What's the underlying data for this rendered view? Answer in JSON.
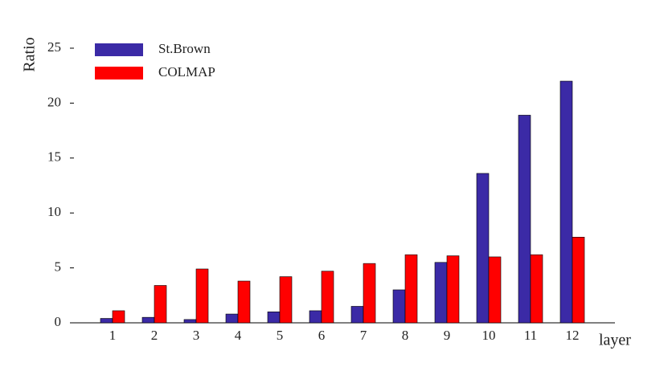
{
  "chart_data": {
    "type": "bar",
    "x_label": "layer",
    "y_label": "Ratio",
    "categories": [
      "1",
      "2",
      "3",
      "4",
      "5",
      "6",
      "7",
      "8",
      "9",
      "10",
      "11",
      "12"
    ],
    "series": [
      {
        "name": "St.Brown",
        "color": "#3b2aa6",
        "values": [
          0.4,
          0.5,
          0.3,
          0.8,
          1.0,
          1.1,
          1.5,
          3.0,
          5.5,
          13.6,
          18.9,
          22.0
        ]
      },
      {
        "name": "COLMAP",
        "color": "#ff0000",
        "values": [
          1.1,
          3.4,
          4.9,
          3.8,
          4.2,
          4.7,
          5.4,
          6.2,
          6.1,
          6.0,
          6.2,
          7.8
        ]
      }
    ],
    "ylim": [
      0,
      25
    ],
    "yticks": [
      0,
      5,
      10,
      15,
      20,
      25
    ],
    "legend": "top-left"
  }
}
